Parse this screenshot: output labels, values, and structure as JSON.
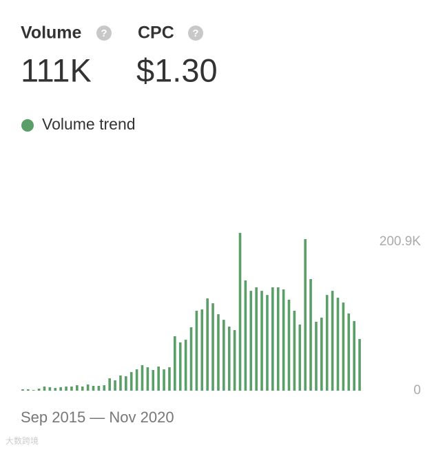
{
  "metrics": [
    {
      "label": "Volume",
      "help": "?",
      "value": "111K"
    },
    {
      "label": "CPC",
      "help": "?",
      "value": "$1.30"
    }
  ],
  "watermark": "大数跨境",
  "chart_data": {
    "type": "bar",
    "legend": "Volume trend",
    "color": "#5a9e68",
    "x_range_label": "Sep 2015 — Nov 2020",
    "categories": [
      null,
      null,
      null,
      null,
      null,
      null,
      null,
      null,
      null,
      null,
      null,
      null,
      null,
      null,
      null,
      null,
      null,
      null,
      null,
      null,
      null,
      null,
      null,
      null,
      null,
      null,
      null,
      null,
      null,
      null,
      null,
      null,
      null,
      null,
      null,
      null,
      null,
      null,
      null,
      null,
      null,
      null,
      null,
      null,
      null,
      null,
      null,
      null,
      null,
      null,
      null,
      null,
      null,
      null,
      null,
      null,
      null,
      null,
      null,
      null,
      null,
      null,
      null
    ],
    "values": [
      1900,
      1900,
      900,
      2800,
      5600,
      4700,
      3700,
      4700,
      5600,
      5600,
      7400,
      5600,
      8400,
      6500,
      6500,
      7400,
      16700,
      14000,
      20500,
      19500,
      25100,
      28800,
      34400,
      31600,
      27900,
      32600,
      28800,
      31600,
      73500,
      65100,
      68800,
      85600,
      107900,
      109700,
      124600,
      118000,
      103200,
      95700,
      86500,
      81800,
      213000,
      148800,
      134800,
      139500,
      134800,
      129200,
      139500,
      139500,
      136700,
      122800,
      107900,
      89300,
      204600,
      150700,
      93000,
      98600,
      129200,
      134800,
      125500,
      119000,
      104200,
      94000,
      69800
    ],
    "ylim": [
      0,
      220000
    ],
    "yticks": [
      0,
      {
        "value": 200900,
        "label": "200.9K"
      }
    ]
  }
}
